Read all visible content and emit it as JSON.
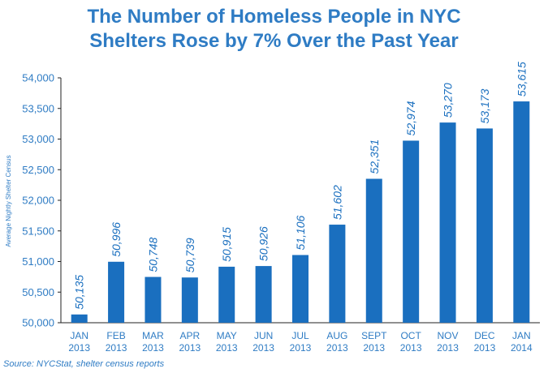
{
  "chart_data": {
    "type": "bar",
    "title_lines": [
      "The Number of Homeless People in NYC",
      "Shelters Rose by 7% Over the Past Year"
    ],
    "ylabel": "Average Nightly Shelter Census",
    "categories": [
      [
        "JAN",
        "2013"
      ],
      [
        "FEB",
        "2013"
      ],
      [
        "MAR",
        "2013"
      ],
      [
        "APR",
        "2013"
      ],
      [
        "MAY",
        "2013"
      ],
      [
        "JUN",
        "2013"
      ],
      [
        "JUL",
        "2013"
      ],
      [
        "AUG",
        "2013"
      ],
      [
        "SEPT",
        "2013"
      ],
      [
        "OCT",
        "2013"
      ],
      [
        "NOV",
        "2013"
      ],
      [
        "DEC",
        "2013"
      ],
      [
        "JAN",
        "2014"
      ]
    ],
    "values": [
      50135,
      50996,
      50748,
      50739,
      50915,
      50926,
      51106,
      51602,
      52351,
      52974,
      53270,
      53173,
      53615
    ],
    "value_labels": [
      "50,135",
      "50,996",
      "50,748",
      "50,739",
      "50,915",
      "50,926",
      "51,106",
      "51,602",
      "52,351",
      "52,974",
      "53,270",
      "53,173",
      "53,615"
    ],
    "ylim": [
      50000,
      54000
    ],
    "yticks": [
      50000,
      50500,
      51000,
      51500,
      52000,
      52500,
      53000,
      53500,
      54000
    ],
    "ytick_labels": [
      "50,000",
      "50,500",
      "51,000",
      "51,500",
      "52,000",
      "52,500",
      "53,000",
      "53,500",
      "54,000"
    ],
    "grid": false,
    "bar_color": "#1a6fbf",
    "text_color": "#2f7cc4",
    "axis_color": "#222222"
  },
  "source": "Source:  NYCStat, shelter census reports"
}
